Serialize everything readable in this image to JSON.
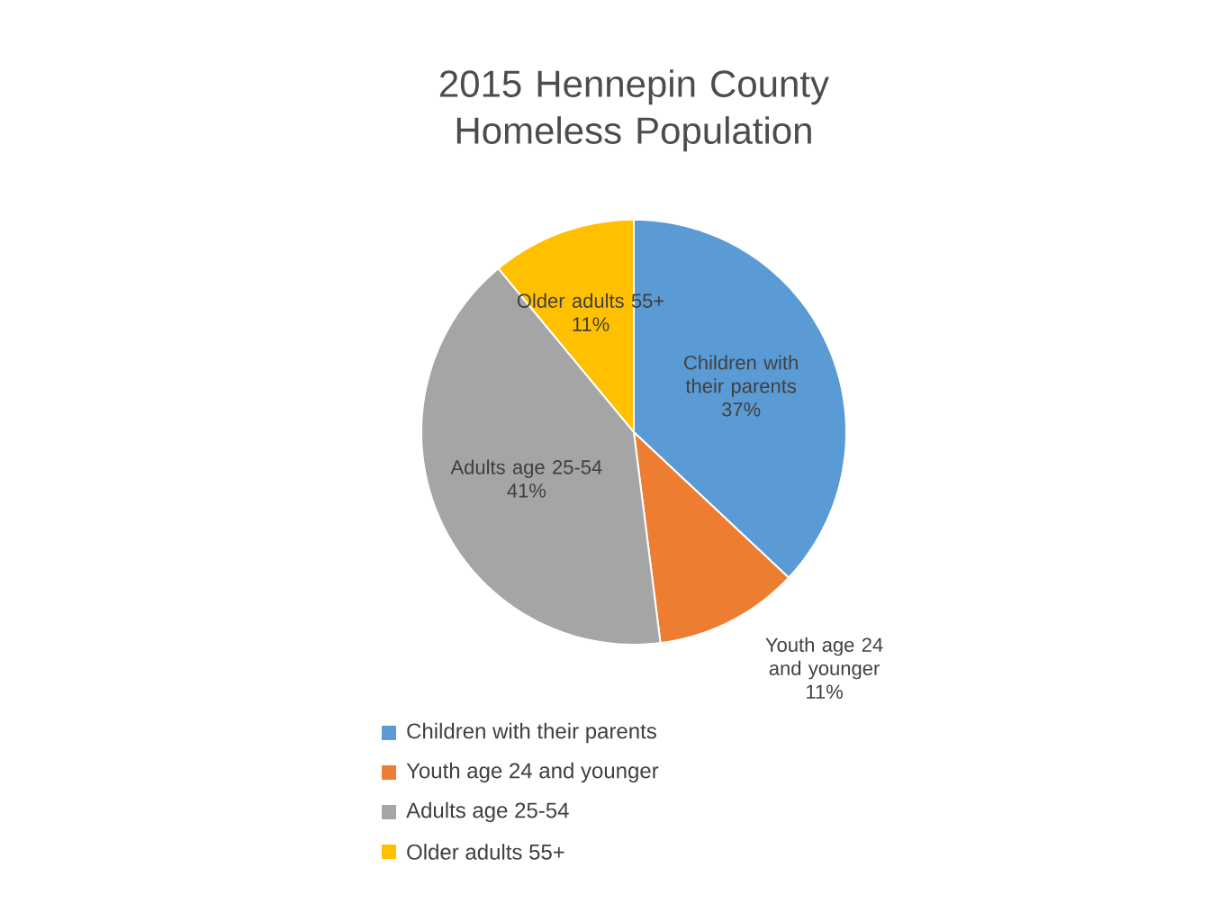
{
  "chart_data": {
    "type": "pie",
    "title": "2015 Hennepin County Homeless Population",
    "categories": [
      "Children with their parents",
      "Youth age 24 and younger",
      "Adults age 25-54",
      "Older adults 55+"
    ],
    "values": [
      37,
      11,
      41,
      11
    ],
    "value_labels": [
      "37%",
      "11%",
      "41%",
      "11%"
    ],
    "colors": [
      "#5b9bd5",
      "#ed7d31",
      "#a5a5a5",
      "#ffc000"
    ],
    "legend": "bottom"
  }
}
